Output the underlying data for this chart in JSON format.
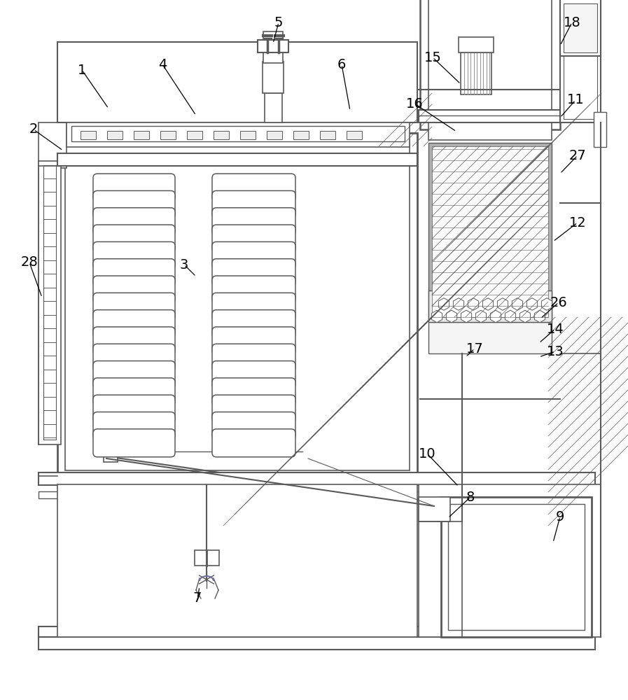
{
  "bg_color": "#ffffff",
  "lc": "#5a5a5a",
  "lc_thin": "#888888",
  "lc_colored": "#7070a0",
  "fig_w": 8.97,
  "fig_h": 10.0,
  "dpi": 100
}
